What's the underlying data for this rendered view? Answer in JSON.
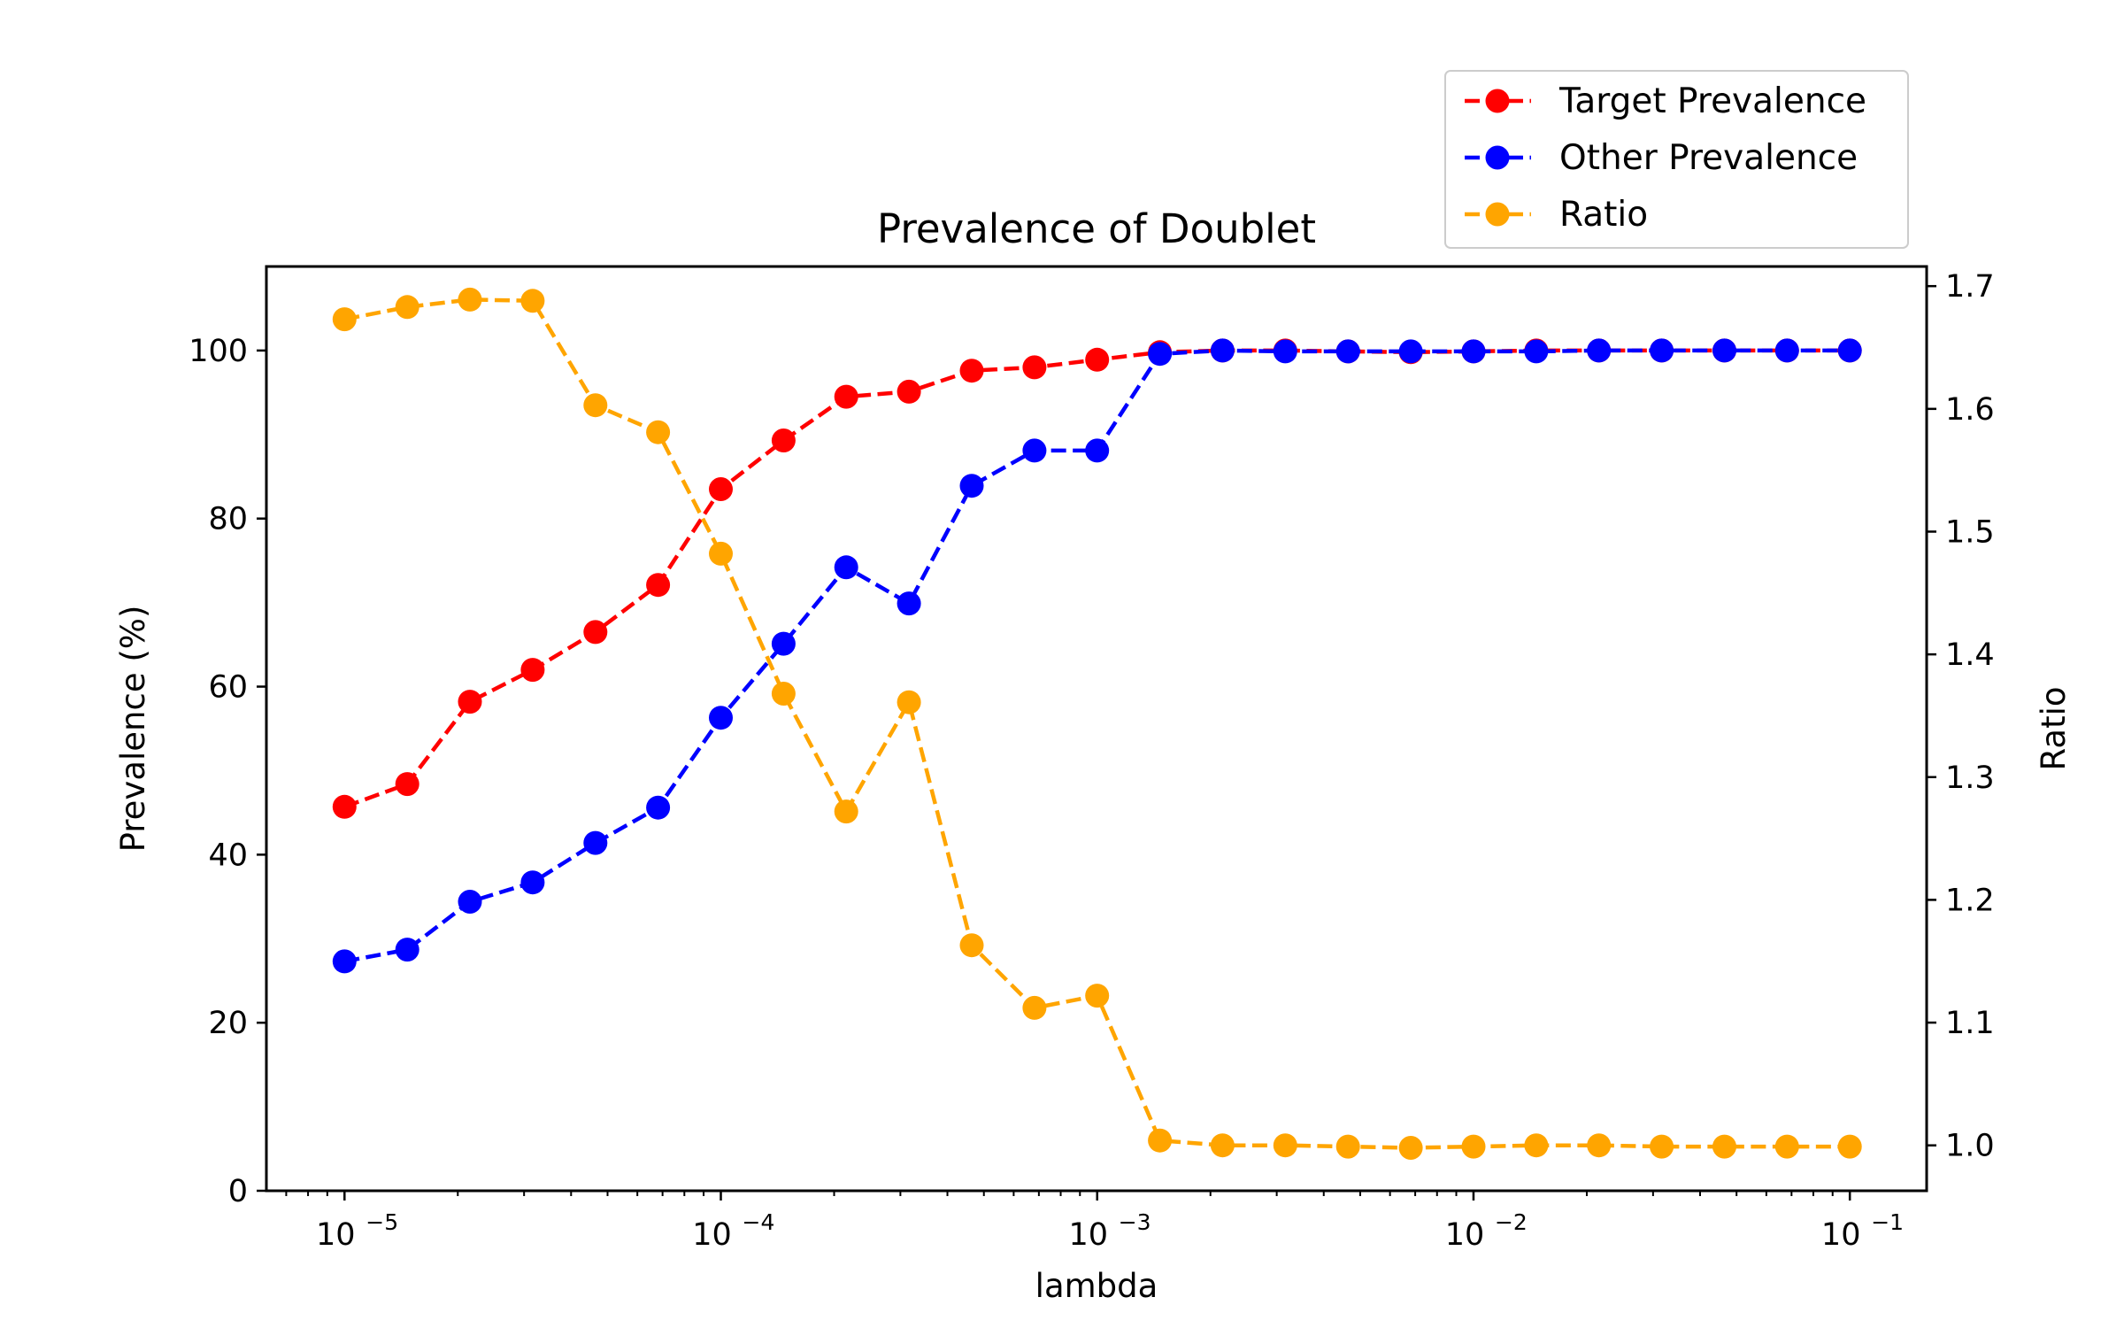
{
  "chart_data": {
    "type": "line",
    "title": "Prevalence of Doublet",
    "xlabel": "lambda",
    "ylabel": "Prevalence (%)",
    "y2label": "Ratio",
    "xscale": "log",
    "xlim": [
      6.2e-06,
      0.16
    ],
    "ylim": [
      0,
      110
    ],
    "y2lim": [
      0.963,
      1.716
    ],
    "x_ticks": [
      {
        "value": 1e-05,
        "base": "10",
        "exp": "−5"
      },
      {
        "value": 0.0001,
        "base": "10",
        "exp": "−4"
      },
      {
        "value": 0.001,
        "base": "10",
        "exp": "−3"
      },
      {
        "value": 0.01,
        "base": "10",
        "exp": "−2"
      },
      {
        "value": 0.1,
        "base": "10",
        "exp": "−1"
      }
    ],
    "y_ticks": [
      "0",
      "20",
      "40",
      "60",
      "80",
      "100"
    ],
    "y2_ticks": [
      "1.0",
      "1.1",
      "1.2",
      "1.3",
      "1.4",
      "1.5",
      "1.6",
      "1.7"
    ],
    "grid": false,
    "legend_position": "top-right, above plot",
    "x": [
      1e-05,
      1.468e-05,
      2.154e-05,
      3.162e-05,
      4.642e-05,
      6.813e-05,
      0.0001,
      0.0001468,
      0.0002154,
      0.0003162,
      0.0004642,
      0.0006813,
      0.001,
      0.001468,
      0.002154,
      0.003162,
      0.004642,
      0.006813,
      0.01,
      0.01468,
      0.02154,
      0.03162,
      0.04642,
      0.06813,
      0.1
    ],
    "series": [
      {
        "name": "Target Prevalence",
        "axis": "left",
        "color": "#ff0000",
        "values": [
          45.7,
          48.4,
          58.2,
          62.0,
          66.5,
          72.1,
          83.5,
          89.3,
          94.5,
          95.1,
          97.6,
          98.0,
          98.9,
          99.8,
          100.0,
          100.0,
          99.9,
          99.8,
          99.9,
          100.0,
          100.0,
          100.0,
          100.0,
          100.0,
          100.0
        ]
      },
      {
        "name": "Other Prevalence",
        "axis": "left",
        "color": "#0000ff",
        "values": [
          27.3,
          28.7,
          34.4,
          36.7,
          41.4,
          45.6,
          56.3,
          65.1,
          74.2,
          69.9,
          83.9,
          88.1,
          88.1,
          99.6,
          100.0,
          99.9,
          99.9,
          99.9,
          99.9,
          99.9,
          100.0,
          100.0,
          100.0,
          100.0,
          100.0
        ]
      },
      {
        "name": "Ratio",
        "axis": "right",
        "color": "#ffa500",
        "values": [
          1.673,
          1.683,
          1.689,
          1.688,
          1.603,
          1.581,
          1.482,
          1.368,
          1.272,
          1.361,
          1.163,
          1.112,
          1.122,
          1.004,
          1.0,
          1.0,
          0.999,
          0.998,
          0.999,
          1.0,
          1.0,
          0.999,
          0.999,
          0.999,
          0.999
        ]
      }
    ]
  }
}
